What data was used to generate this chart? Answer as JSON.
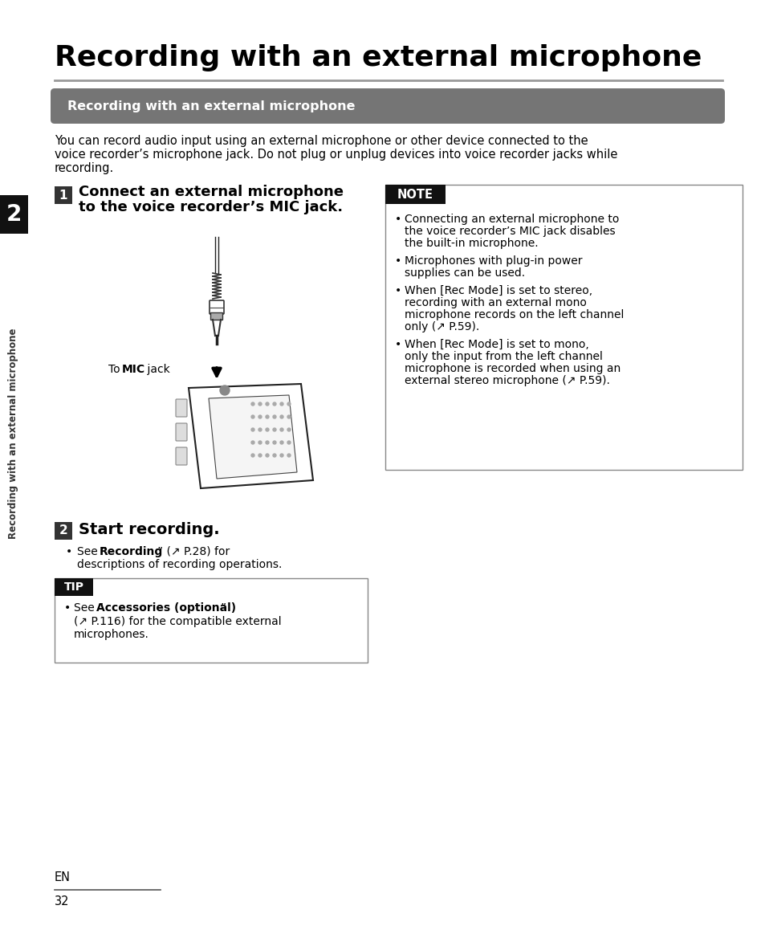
{
  "page_title": "Recording with an external microphone",
  "section_header": "Recording with an external microphone",
  "intro_line1": "You can record audio input using an external microphone or other device connected to the",
  "intro_line2": "voice recorder’s microphone jack. Do not plug or unplug devices into voice recorder jacks while",
  "intro_line3": "recording.",
  "step1_num": "1",
  "step1_line1": "Connect an external microphone",
  "step1_line2": "to the voice recorder’s MIC jack.",
  "mic_label_pre": "To ",
  "mic_label_bold": "MIC",
  "mic_label_post": " jack",
  "note_header": "NOTE",
  "note_b1_pre": "Connecting an external microphone to\nthe voice recorder’s ",
  "note_b1_bold": "MIC",
  "note_b1_post": " jack disables\nthe built-in microphone.",
  "note_b2": "Microphones with plug-in power\nsupplies can be used.",
  "note_b3_pre": "When [",
  "note_b3_bold": "Rec Mode",
  "note_b3_post": "] is set to stereo,\nrecording with an external mono\nmicrophone records on the left channel\nonly (↗ P.59).",
  "note_b4_pre": "When [",
  "note_b4_bold": "Rec Mode",
  "note_b4_post": "] is set to mono,\nonly the input from the left channel\nmicrophone is recorded when using an\nexternal stereo microphone (↗ P.59).",
  "step2_num": "2",
  "step2_text": "Start recording.",
  "step2_b_pre": "See “",
  "step2_b_bold": "Recording",
  "step2_b_post": "” (↗ P.28) for\ndescriptions of recording operations.",
  "tip_header": "TIP",
  "tip_b_pre": "See “",
  "tip_b_bold": "Accessories (optional)",
  "tip_b_post": "”\n(↗ P.116) for the compatible external\nmicrophones.",
  "sidebar_text": "Recording with an external microphone",
  "chapter_num": "2",
  "page_num": "32",
  "page_label": "EN",
  "bg_color": "#ffffff",
  "header_bg": "#757575",
  "note_header_bg": "#111111",
  "tip_header_bg": "#111111",
  "header_text_color": "#ffffff",
  "title_color": "#000000",
  "body_color": "#000000",
  "sidebar_bg": "#111111",
  "step_box_bg": "#333333",
  "rule_color": "#999999"
}
